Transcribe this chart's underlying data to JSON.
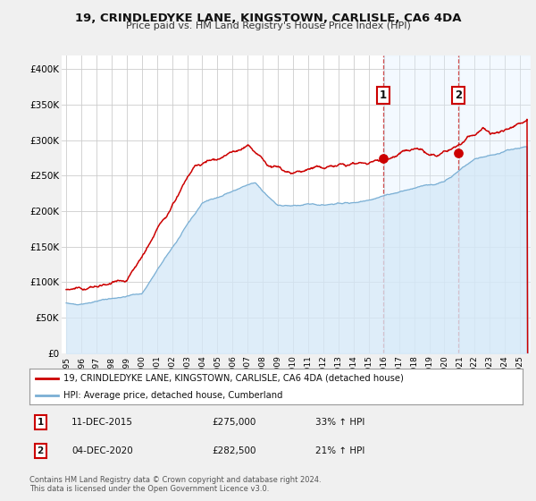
{
  "title": "19, CRINDLEDYKE LANE, KINGSTOWN, CARLISLE, CA6 4DA",
  "subtitle": "Price paid vs. HM Land Registry's House Price Index (HPI)",
  "ylim": [
    0,
    420000
  ],
  "xlim_start": 1994.7,
  "xlim_end": 2025.7,
  "yticks": [
    0,
    50000,
    100000,
    150000,
    200000,
    250000,
    300000,
    350000,
    400000
  ],
  "ytick_labels": [
    "£0",
    "£50K",
    "£100K",
    "£150K",
    "£200K",
    "£250K",
    "£300K",
    "£350K",
    "£400K"
  ],
  "xticks": [
    1995,
    1996,
    1997,
    1998,
    1999,
    2000,
    2001,
    2002,
    2003,
    2004,
    2005,
    2006,
    2007,
    2008,
    2009,
    2010,
    2011,
    2012,
    2013,
    2014,
    2015,
    2016,
    2017,
    2018,
    2019,
    2020,
    2021,
    2022,
    2023,
    2024,
    2025
  ],
  "property_color": "#cc0000",
  "hpi_fill_color": "#d4e8f8",
  "hpi_line_color": "#7aafd4",
  "shade_color": "#ddeeff",
  "marker1_date": 2015.95,
  "marker1_value": 275000,
  "marker1_label": "11-DEC-2015",
  "marker1_price": "£275,000",
  "marker1_hpi": "33% ↑ HPI",
  "marker2_date": 2020.92,
  "marker2_value": 282500,
  "marker2_label": "04-DEC-2020",
  "marker2_price": "£282,500",
  "marker2_hpi": "21% ↑ HPI",
  "legend_property": "19, CRINDLEDYKE LANE, KINGSTOWN, CARLISLE, CA6 4DA (detached house)",
  "legend_hpi": "HPI: Average price, detached house, Cumberland",
  "footer1": "Contains HM Land Registry data © Crown copyright and database right 2024.",
  "footer2": "This data is licensed under the Open Government Licence v3.0.",
  "background_color": "#f0f0f0",
  "plot_background": "#ffffff",
  "grid_color": "#cccccc"
}
